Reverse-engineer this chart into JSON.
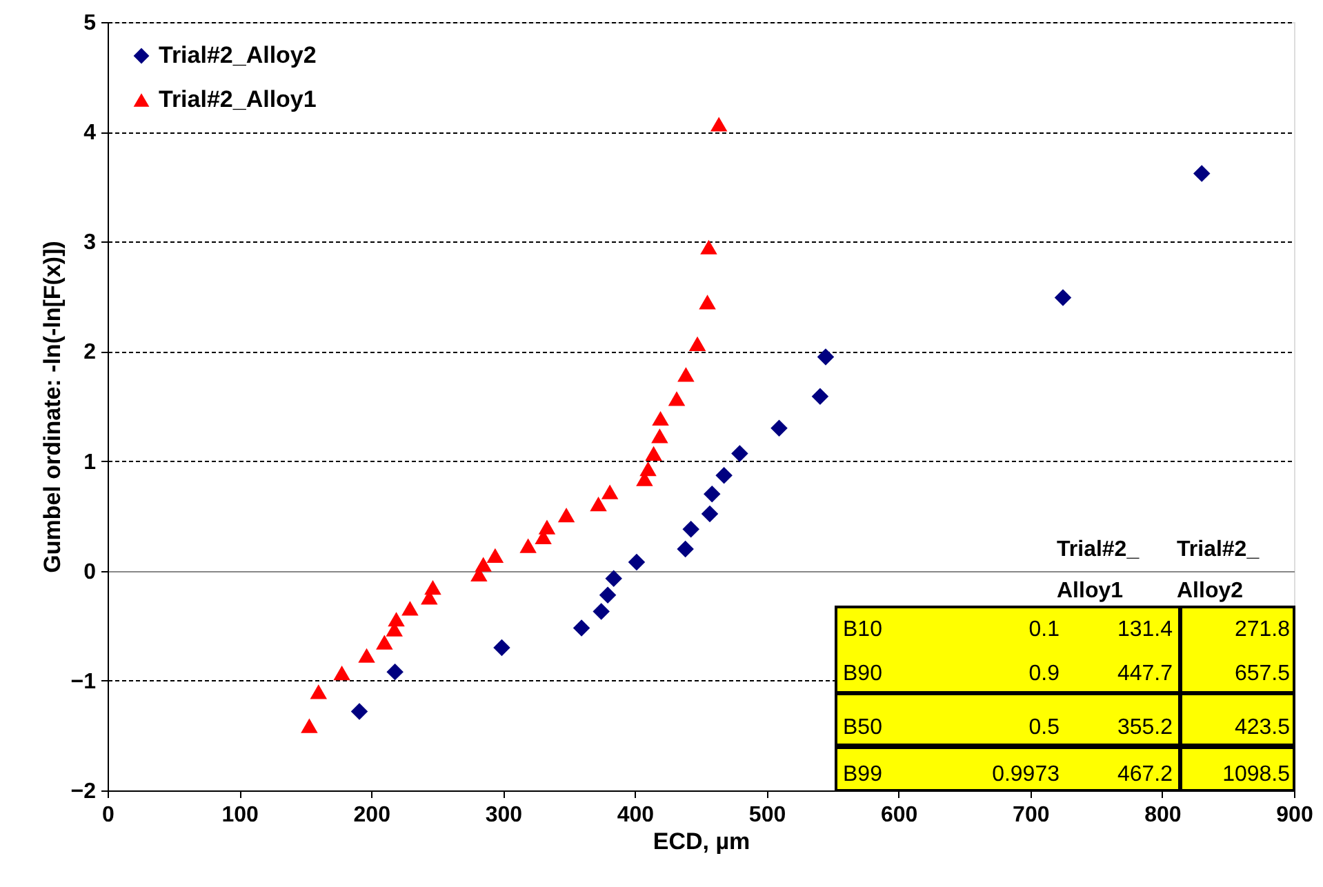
{
  "chart_data": {
    "type": "scatter",
    "xlabel": "ECD, µm",
    "ylabel": "Gumbel ordinate: -ln(-ln[F(x)])",
    "series": [
      {
        "name": "Trial#2_Alloy2",
        "color": "#000080",
        "marker": "diamond",
        "x": [
          191,
          218,
          299,
          359.5,
          374.5,
          379.4,
          383.9,
          401.3,
          438.3,
          442.5,
          456.8,
          458.5,
          467.6,
          479.5,
          509.4,
          540.5,
          544.7,
          724.7,
          830
        ],
        "values": [
          -1.28,
          -0.92,
          -0.7,
          -0.52,
          -0.37,
          -0.22,
          -0.07,
          0.08,
          0.2,
          0.38,
          0.52,
          0.7,
          0.87,
          1.07,
          1.3,
          1.59,
          1.95,
          2.49,
          3.62
        ]
      },
      {
        "name": "Trial#2_Alloy1",
        "color": "#ff0000",
        "marker": "triangle",
        "x": [
          153,
          160,
          177.7,
          196.5,
          210,
          217.5,
          219,
          229.4,
          244,
          246.7,
          281.7,
          285,
          294,
          319,
          330.5,
          333.3,
          348,
          372.3,
          381,
          407.3,
          410,
          414.2,
          418.8,
          419.4,
          431.7,
          438.7,
          447.4,
          455,
          456,
          463.7
        ],
        "values": [
          -1.41,
          -1.1,
          -0.93,
          -0.77,
          -0.65,
          -0.53,
          -0.44,
          -0.34,
          -0.24,
          -0.15,
          -0.03,
          0.06,
          0.14,
          0.23,
          0.31,
          0.4,
          0.51,
          0.61,
          0.72,
          0.84,
          0.93,
          1.07,
          1.23,
          1.39,
          1.57,
          1.79,
          2.07,
          2.45,
          2.95,
          4.07
        ]
      }
    ],
    "xlim": [
      0,
      900
    ],
    "xticks": [
      0,
      100,
      200,
      300,
      400,
      500,
      600,
      700,
      800,
      900
    ],
    "ylim": [
      -2,
      5
    ],
    "yticks": [
      -2,
      -1,
      0,
      1,
      2,
      3,
      4,
      5
    ],
    "grid": "y",
    "legend": "top left",
    "annotations": [
      "Trial#2_ Alloy1",
      "Trial#2_ Alloy2",
      "B10",
      "0.1",
      "131.4",
      "271.8",
      "B90",
      "0.9",
      "447.7",
      "657.5",
      "B50",
      "0.5",
      "355.2",
      "423.5",
      "B99",
      "0.9973",
      "467.2",
      "1098.5"
    ]
  }
}
